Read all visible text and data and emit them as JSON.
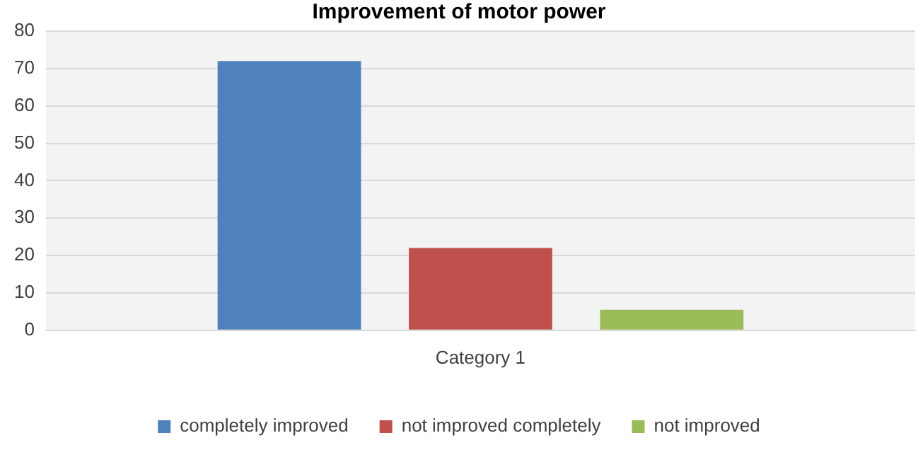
{
  "chart_data": {
    "type": "bar",
    "title": "Improvement of motor power",
    "categories": [
      "Category 1"
    ],
    "series": [
      {
        "name": "completely improved",
        "color": "#4f81bd",
        "values": [
          72
        ]
      },
      {
        "name": "not improved completely",
        "color": "#c0504d",
        "values": [
          22
        ]
      },
      {
        "name": "not improved",
        "color": "#9bbb59",
        "values": [
          5.5
        ]
      }
    ],
    "ylim": [
      0,
      80
    ],
    "yticks": [
      0,
      10,
      20,
      30,
      40,
      50,
      60,
      70,
      80
    ],
    "grid": "y",
    "legend": "bottom"
  }
}
